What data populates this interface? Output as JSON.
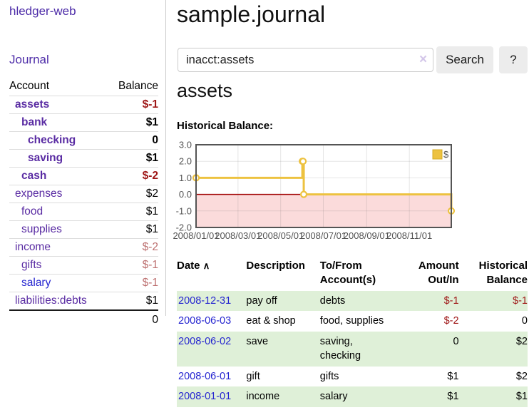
{
  "brand": "hledger-web",
  "nav": {
    "journal": "Journal"
  },
  "sidebar": {
    "headers": {
      "account": "Account",
      "balance": "Balance"
    },
    "accounts": [
      {
        "name": "assets",
        "depth": 1,
        "bold": true,
        "balance": "$-1",
        "neg": "strong"
      },
      {
        "name": "bank",
        "depth": 2,
        "bold": true,
        "balance": "$1",
        "neg": "none"
      },
      {
        "name": "checking",
        "depth": 3,
        "bold": true,
        "balance": "0",
        "neg": "none"
      },
      {
        "name": "saving",
        "depth": 3,
        "bold": true,
        "balance": "$1",
        "neg": "none"
      },
      {
        "name": "cash",
        "depth": 2,
        "bold": true,
        "balance": "$-2",
        "neg": "strong"
      },
      {
        "name": "expenses",
        "depth": 1,
        "bold": false,
        "balance": "$2",
        "neg": "none"
      },
      {
        "name": "food",
        "depth": 2,
        "bold": false,
        "balance": "$1",
        "neg": "none"
      },
      {
        "name": "supplies",
        "depth": 2,
        "bold": false,
        "balance": "$1",
        "neg": "none"
      },
      {
        "name": "income",
        "depth": 1,
        "bold": false,
        "balance": "$-2",
        "neg": "soft"
      },
      {
        "name": "gifts",
        "depth": 2,
        "bold": false,
        "balance": "$-1",
        "neg": "soft"
      },
      {
        "name": "salary",
        "depth": 2,
        "bold": false,
        "balance": "$-1",
        "neg": "soft",
        "link_blue": true
      },
      {
        "name": "liabilities:debts",
        "depth": 1,
        "bold": false,
        "balance": "$1",
        "neg": "none"
      }
    ],
    "total": "0"
  },
  "main": {
    "title": "sample.journal",
    "search": {
      "value": "inacct:assets",
      "clear_icon": "×",
      "search_label": "Search",
      "help_label": "?"
    },
    "account_heading": "assets",
    "chart_title": "Historical Balance:"
  },
  "chart_data": {
    "type": "line",
    "style": "step-after",
    "title": "Historical Balance",
    "ylim": [
      -2,
      3
    ],
    "x_range_days": [
      0,
      365
    ],
    "y_ticks": [
      "3.0",
      "2.0",
      "1.0",
      "0.0",
      "-1.0",
      "-2.0"
    ],
    "x_ticks": [
      {
        "label": "2008/01/01",
        "day": 0
      },
      {
        "label": "2008/03/01",
        "day": 60
      },
      {
        "label": "2008/05/01",
        "day": 121
      },
      {
        "label": "2008/07/01",
        "day": 182
      },
      {
        "label": "2008/09/01",
        "day": 244
      },
      {
        "label": "2008/11/01",
        "day": 305
      }
    ],
    "series": [
      {
        "name": "$",
        "color": "#EDC240",
        "points": [
          {
            "date": "2008-01-01",
            "day": 0,
            "value": 1
          },
          {
            "date": "2008-06-01",
            "day": 152,
            "value": 2
          },
          {
            "date": "2008-06-02",
            "day": 153,
            "value": 2
          },
          {
            "date": "2008-06-03",
            "day": 154,
            "value": 0
          },
          {
            "date": "2008-12-31",
            "day": 365,
            "value": -1
          }
        ]
      }
    ],
    "legend": [
      {
        "label": "$",
        "color": "#EDC240"
      }
    ],
    "legend_position": "top-right",
    "grid": true,
    "negative_region_fill": "#fbdbdb",
    "zero_line_color": "#a00000",
    "border_color": "#545454"
  },
  "register": {
    "headers": {
      "date": "Date",
      "sort_icon": "∧",
      "description": "Description",
      "accounts": "To/From Account(s)",
      "amount": "Amount Out/In",
      "balance": "Historical Balance"
    },
    "rows": [
      {
        "date": "2008-12-31",
        "description": "pay off",
        "accounts": "debts",
        "amount": "$-1",
        "amount_neg": true,
        "balance": "$-1",
        "balance_neg": true,
        "shade": true
      },
      {
        "date": "2008-06-03",
        "description": "eat & shop",
        "accounts": "food, supplies",
        "amount": "$-2",
        "amount_neg": true,
        "balance": "0",
        "balance_neg": false,
        "shade": false
      },
      {
        "date": "2008-06-02",
        "description": "save",
        "accounts": "saving,\nchecking",
        "amount": "0",
        "amount_neg": false,
        "balance": "$2",
        "balance_neg": false,
        "shade": true
      },
      {
        "date": "2008-06-01",
        "description": "gift",
        "accounts": "gifts",
        "amount": "$1",
        "amount_neg": false,
        "balance": "$2",
        "balance_neg": false,
        "shade": false
      },
      {
        "date": "2008-01-01",
        "description": "income",
        "accounts": "salary",
        "amount": "$1",
        "amount_neg": false,
        "balance": "$1",
        "balance_neg": false,
        "shade": true
      }
    ]
  }
}
